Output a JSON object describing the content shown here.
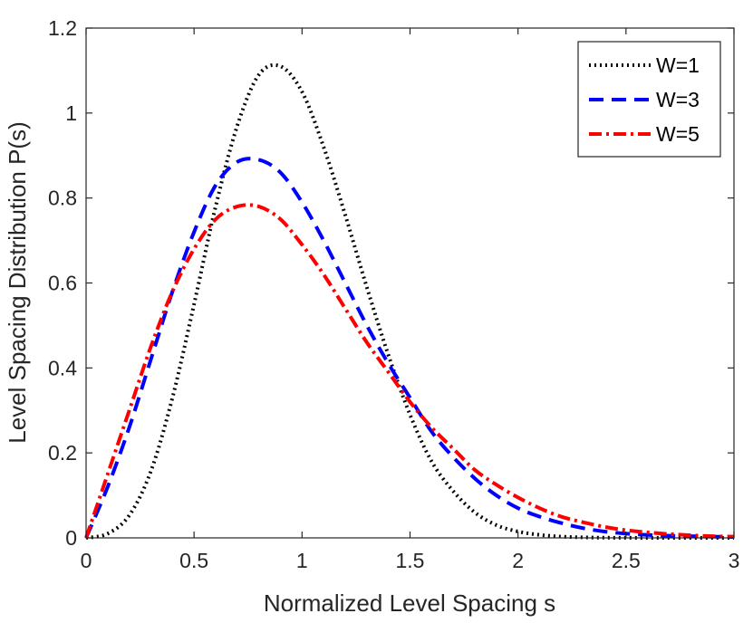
{
  "chart_data": {
    "type": "line",
    "title": "",
    "xlabel": "Normalized Level Spacing s",
    "ylabel": "Level Spacing Distribution P(s)",
    "xlim": [
      0,
      3
    ],
    "ylim": [
      0,
      1.2
    ],
    "xticks": [
      0,
      0.5,
      1,
      1.5,
      2,
      2.5,
      3
    ],
    "xtick_labels": [
      "0",
      "0.5",
      "1",
      "1.5",
      "2",
      "2.5",
      "3"
    ],
    "yticks": [
      0,
      0.2,
      0.4,
      0.6,
      0.8,
      1,
      1.2
    ],
    "ytick_labels": [
      "0",
      "0.2",
      "0.4",
      "0.6",
      "0.8",
      "1",
      "1.2"
    ],
    "grid": false,
    "legend_position": "top-right",
    "x": [
      0,
      0.1,
      0.2,
      0.3,
      0.4,
      0.5,
      0.6,
      0.7,
      0.8,
      0.9,
      1.0,
      1.1,
      1.2,
      1.3,
      1.4,
      1.5,
      1.6,
      1.7,
      1.8,
      1.9,
      2.0,
      2.1,
      2.2,
      2.3,
      2.4,
      2.5,
      2.6,
      2.7,
      2.8,
      2.9,
      3.0
    ],
    "series": [
      {
        "name": "W=1",
        "color": "#000000",
        "style": "dotted",
        "values": [
          0,
          0.01,
          0.053,
          0.157,
          0.33,
          0.55,
          0.78,
          0.97,
          1.09,
          1.11,
          1.05,
          0.92,
          0.76,
          0.59,
          0.43,
          0.29,
          0.18,
          0.11,
          0.06,
          0.03,
          0.015,
          0.007,
          0.003,
          0.0012,
          0.0005,
          0.0002,
          0.0001,
          0,
          0,
          0,
          0
        ]
      },
      {
        "name": "W=3",
        "color": "#0000ff",
        "style": "dashed",
        "values": [
          0,
          0.12,
          0.26,
          0.42,
          0.58,
          0.72,
          0.83,
          0.885,
          0.89,
          0.86,
          0.79,
          0.7,
          0.6,
          0.5,
          0.41,
          0.33,
          0.25,
          0.19,
          0.14,
          0.1,
          0.07,
          0.05,
          0.035,
          0.023,
          0.015,
          0.01,
          0.007,
          0.005,
          0.004,
          0.003,
          0.002
        ]
      },
      {
        "name": "W=5",
        "color": "#ff0000",
        "style": "dash-dot",
        "values": [
          0,
          0.15,
          0.3,
          0.45,
          0.58,
          0.68,
          0.75,
          0.78,
          0.78,
          0.75,
          0.69,
          0.62,
          0.54,
          0.46,
          0.39,
          0.32,
          0.26,
          0.21,
          0.16,
          0.125,
          0.095,
          0.07,
          0.05,
          0.037,
          0.026,
          0.018,
          0.013,
          0.009,
          0.006,
          0.004,
          0.003
        ]
      }
    ]
  }
}
